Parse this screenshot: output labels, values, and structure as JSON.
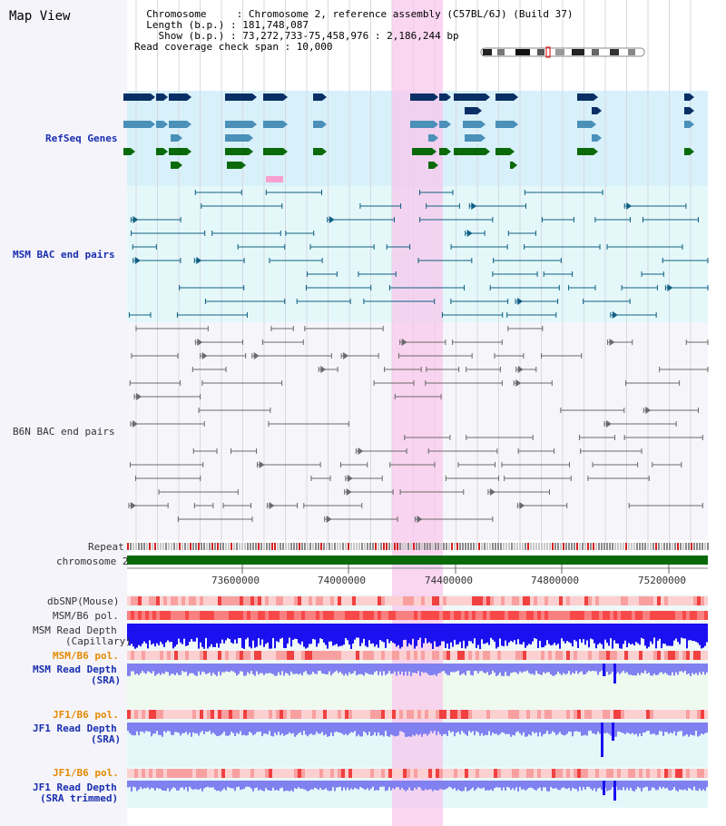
{
  "map_title": "Map View",
  "info": {
    "line1": "  Chromosome     : Chromosome 2, reference assembly (C57BL/6J) (Build 37)",
    "line2": "  Length (b.p.) : 181,748,087",
    "line3": "    Show (b.p.) : 73,272,733-75,458,976 : 2,186,244 bp",
    "line4": "Read coverage check span : 10,000"
  },
  "tracks": {
    "refseq": "RefSeq Genes",
    "msm_bac": "MSM BAC end pairs",
    "b6n_bac": "B6N BAC end pairs",
    "repeat": "Repeat",
    "chromosome": "chromosome 2",
    "dbsnp": "dbSNP(Mouse)",
    "msm_b6_pol1": "MSM/B6 pol.",
    "msm_read_cap_1": "MSM Read Depth",
    "msm_read_cap_2": "(Capillary)",
    "msm_b6_pol2": "MSM/B6 pol.",
    "msm_read_sra_1": "MSM Read Depth",
    "msm_read_sra_2": "(SRA)",
    "jf1_b6_pol1": "JF1/B6 pol.",
    "jf1_read_sra_1": "JF1 Read Depth",
    "jf1_read_sra_2": "(SRA)",
    "jf1_b6_pol2": "JF1/B6 pol.",
    "jf1_read_trim_1": "JF1 Read Depth",
    "jf1_read_trim_2": "(SRA trimmed)"
  },
  "axis": {
    "ticks": [
      "73600000",
      "74000000",
      "74400000",
      "74800000",
      "75200000"
    ]
  },
  "colors": {
    "highlight": "#f8c8ec",
    "refseq_bg": "#d8f0fa",
    "msm_bg": "#e4f8fa",
    "b6n_bg": "#f6f6fa",
    "gene_navy": "#0a2f66",
    "gene_steel": "#4a90b8",
    "gene_green": "#0a6a0a",
    "chromosome": "#0a6a0a",
    "depth_blue": "#1a10f0",
    "depth_light": "#8080f0"
  }
}
